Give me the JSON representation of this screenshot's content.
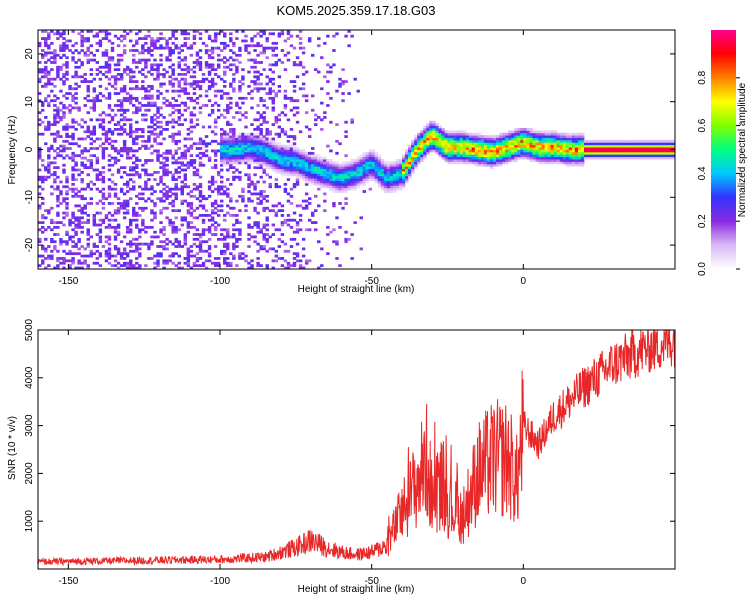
{
  "figure_title": "KOM5.2025.359.17.18.G03",
  "colors": {
    "snr_line": "#e82828",
    "axis": "#000000",
    "background": "#ffffff"
  },
  "chart_data": [
    {
      "type": "heatmap",
      "name": "spectrogram",
      "xlabel": "Height of straight line (km)",
      "ylabel": "Frequency (Hz)",
      "xlim": [
        -160,
        50
      ],
      "ylim": [
        -25,
        25
      ],
      "xticks": [
        -150,
        -100,
        -50,
        0
      ],
      "xtick_labels": [
        "-150",
        "-100",
        "-50",
        "0"
      ],
      "yticks": [
        -20,
        -10,
        0,
        10,
        20
      ],
      "ytick_labels": [
        "-20",
        "-10",
        "0",
        "10",
        "20"
      ],
      "colorbar": {
        "label": "Normalized spectral amplitude",
        "range": [
          0,
          1
        ],
        "ticks": [
          0.0,
          0.2,
          0.4,
          0.6,
          0.8
        ],
        "tick_labels": [
          "0.0",
          "0.2",
          "0.4",
          "0.6",
          "0.8"
        ],
        "colormap": [
          "#ffffff",
          "#d9b8f5",
          "#8a2be2",
          "#3333ff",
          "#00c8ff",
          "#00ff80",
          "#80ff00",
          "#ffff00",
          "#ff8000",
          "#ff0000",
          "#ff0090"
        ]
      },
      "ridge": {
        "description": "signal frequency ridge vs height",
        "x": [
          -95,
          -90,
          -85,
          -80,
          -75,
          -70,
          -65,
          -60,
          -55,
          -50,
          -45,
          -40,
          -35,
          -30,
          -25,
          -20,
          -15,
          -10,
          -5,
          0,
          5,
          10,
          15,
          20,
          30,
          40,
          50
        ],
        "y": [
          0,
          0.5,
          -0.5,
          -2,
          -2.5,
          -4,
          -5,
          -6,
          -5,
          -3,
          -6,
          -5,
          0,
          3,
          0.5,
          0.5,
          0,
          -0.5,
          0.5,
          1.5,
          0.5,
          0.5,
          0,
          0,
          0,
          0,
          0
        ],
        "peak_value": 1.0
      },
      "noise_region": {
        "x_range": [
          -160,
          -60
        ],
        "f_range": [
          -25,
          25
        ],
        "level": 0.15
      }
    },
    {
      "type": "line",
      "name": "snr",
      "xlabel": "Height of straight line (km)",
      "ylabel": "SNR (10 * v/v)",
      "xlim": [
        -160,
        50
      ],
      "ylim": [
        0,
        5000
      ],
      "xticks": [
        -150,
        -100,
        -50,
        0
      ],
      "xtick_labels": [
        "-150",
        "-100",
        "-50",
        "0"
      ],
      "yticks": [
        1000,
        2000,
        3000,
        4000,
        5000
      ],
      "ytick_labels": [
        "1000",
        "2000",
        "3000",
        "4000",
        "5000"
      ],
      "envelope": {
        "x": [
          -160,
          -100,
          -85,
          -80,
          -75,
          -70,
          -65,
          -60,
          -55,
          -50,
          -45,
          -40,
          -35,
          -32,
          -30,
          -27,
          -25,
          -22,
          -20,
          -15,
          -10,
          -5,
          -2,
          0,
          5,
          10,
          15,
          20,
          30,
          40,
          50
        ],
        "y": [
          150,
          200,
          250,
          350,
          450,
          600,
          450,
          350,
          300,
          350,
          500,
          1200,
          1800,
          2300,
          1500,
          1800,
          1400,
          1200,
          1100,
          2000,
          2300,
          2300,
          1800,
          3000,
          2600,
          3200,
          3500,
          3800,
          4300,
          4600,
          4800
        ]
      }
    }
  ]
}
